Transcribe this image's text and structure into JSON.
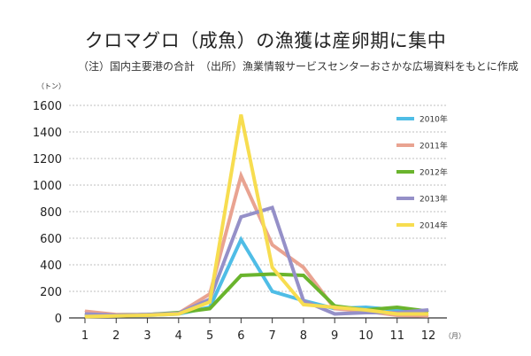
{
  "chart_data": {
    "type": "line",
    "title": "クロマグロ（成魚）の漁獲は産卵期に集中",
    "note": "（注）国内主要港の合計",
    "source": "（出所）漁業情報サービスセンターおさかな広場資料をもとに作成",
    "ylabel": "（トン）",
    "xlabel": "（月）",
    "ylim": [
      0,
      1600
    ],
    "yticks": [
      "0",
      "200",
      "400",
      "600",
      "800",
      "1000",
      "1200",
      "1400",
      "1600"
    ],
    "x": [
      "1",
      "2",
      "3",
      "4",
      "5",
      "6",
      "7",
      "8",
      "9",
      "10",
      "11",
      "12"
    ],
    "grid": true,
    "legend_position": "right",
    "series": [
      {
        "name": "2010年",
        "color": "#4fbde6",
        "values": [
          20,
          15,
          20,
          30,
          80,
          590,
          200,
          130,
          70,
          80,
          60,
          50
        ]
      },
      {
        "name": "2011年",
        "color": "#e9a391",
        "values": [
          50,
          25,
          25,
          35,
          180,
          1070,
          550,
          380,
          70,
          50,
          20,
          15
        ]
      },
      {
        "name": "2012年",
        "color": "#6ab42d",
        "values": [
          20,
          20,
          25,
          40,
          70,
          320,
          330,
          320,
          90,
          60,
          80,
          50
        ]
      },
      {
        "name": "2013年",
        "color": "#9590c8",
        "values": [
          30,
          20,
          25,
          35,
          140,
          760,
          830,
          130,
          30,
          40,
          40,
          60
        ]
      },
      {
        "name": "2014年",
        "color": "#f7dd50",
        "values": [
          10,
          15,
          20,
          30,
          120,
          1530,
          380,
          100,
          80,
          60,
          30,
          30
        ]
      }
    ]
  }
}
